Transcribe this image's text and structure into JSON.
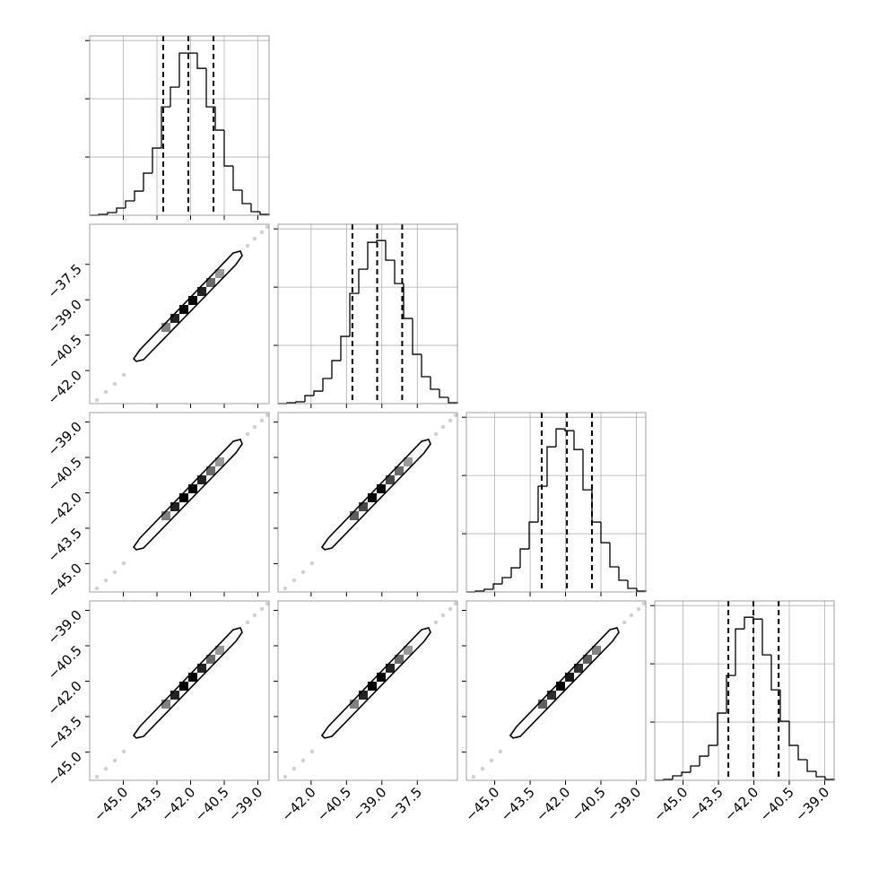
{
  "chart_data": {
    "type": "corner",
    "color": "#000000",
    "grid": true,
    "hist_ylim": [
      0,
      3080
    ],
    "hist_yticks": [
      1000,
      2000,
      3000
    ],
    "params": [
      {
        "lim": [
          -46.5,
          -38.5
        ],
        "ticks": [
          {
            "value": -45,
            "label": "−45.0"
          },
          {
            "value": -43.5,
            "label": "−43.5"
          },
          {
            "value": -42,
            "label": "−42.0"
          },
          {
            "value": -40.5,
            "label": "−40.5"
          },
          {
            "value": -39,
            "label": "−39.0"
          }
        ],
        "bins": [
          -46.5,
          -46.1,
          -45.7,
          -45.3,
          -44.9,
          -44.5,
          -44.1,
          -43.7,
          -43.3,
          -42.9,
          -42.5,
          -42.1,
          -41.7,
          -41.3,
          -40.9,
          -40.5,
          -40.1,
          -39.7,
          -39.3,
          -38.9,
          -38.5
        ],
        "counts": [
          0,
          15,
          46,
          123,
          246,
          415,
          723,
          1154,
          1862,
          2200,
          2785,
          2785,
          2523,
          1862,
          1462,
          846,
          431,
          200,
          62,
          15
        ],
        "quantiles": [
          -43.22,
          -42.1,
          -40.98
        ]
      },
      {
        "lim": [
          -43.4,
          -35.8
        ],
        "ticks": [
          {
            "value": -42,
            "label": "−42.0"
          },
          {
            "value": -40.5,
            "label": "−40.5"
          },
          {
            "value": -39,
            "label": "−39.0"
          },
          {
            "value": -37.5,
            "label": "−37.5"
          }
        ],
        "bins": [
          -43.4,
          -43.02,
          -42.64,
          -42.26,
          -41.88,
          -41.5,
          -41.12,
          -40.74,
          -40.36,
          -39.98,
          -39.6,
          -39.22,
          -38.84,
          -38.46,
          -38.08,
          -37.7,
          -37.32,
          -36.94,
          -36.56,
          -36.18,
          -35.8
        ],
        "counts": [
          0,
          15,
          31,
          138,
          215,
          431,
          738,
          1154,
          1892,
          2308,
          2769,
          2800,
          2462,
          2062,
          1462,
          846,
          462,
          246,
          108,
          15
        ],
        "quantiles": [
          -40.25,
          -39.2,
          -38.14
        ]
      },
      {
        "lim": [
          -46.2,
          -38.6
        ],
        "ticks": [
          {
            "value": -45,
            "label": "−45.0"
          },
          {
            "value": -43.5,
            "label": "−43.5"
          },
          {
            "value": -42,
            "label": "−42.0"
          },
          {
            "value": -40.5,
            "label": "−40.5"
          },
          {
            "value": -39,
            "label": "−39.0"
          }
        ],
        "bins": [
          -46.2,
          -45.82,
          -45.44,
          -45.06,
          -44.68,
          -44.3,
          -43.92,
          -43.54,
          -43.16,
          -42.78,
          -42.4,
          -42.02,
          -41.64,
          -41.26,
          -40.88,
          -40.5,
          -40.12,
          -39.74,
          -39.36,
          -38.98,
          -38.6
        ],
        "counts": [
          0,
          15,
          46,
          138,
          246,
          415,
          738,
          1200,
          1815,
          2492,
          2800,
          2769,
          2446,
          1754,
          1200,
          846,
          431,
          200,
          62,
          15
        ],
        "quantiles": [
          -43.01,
          -41.94,
          -40.88
        ]
      },
      {
        "lim": [
          -46.2,
          -38.6
        ],
        "ticks": [
          {
            "value": -45,
            "label": "−45.0"
          },
          {
            "value": -43.5,
            "label": "−43.5"
          },
          {
            "value": -42,
            "label": "−42.0"
          },
          {
            "value": -40.5,
            "label": "−40.5"
          },
          {
            "value": -39,
            "label": "−39.0"
          }
        ],
        "bins": [
          -46.2,
          -45.82,
          -45.44,
          -45.06,
          -44.68,
          -44.3,
          -43.92,
          -43.54,
          -43.16,
          -42.78,
          -42.4,
          -42.02,
          -41.64,
          -41.26,
          -40.88,
          -40.5,
          -40.12,
          -39.74,
          -39.36,
          -38.98,
          -38.6
        ],
        "counts": [
          0,
          15,
          77,
          138,
          246,
          415,
          600,
          1154,
          1800,
          2600,
          2800,
          2769,
          2154,
          1554,
          1015,
          600,
          354,
          154,
          62,
          15
        ],
        "quantiles": [
          -43.08,
          -42.02,
          -40.95
        ]
      }
    ],
    "panels": [
      {
        "x_param": 0,
        "y_param": 1,
        "contour": {
          "x": [
            -44.54,
            -44.26,
            -40.1,
            -39.78,
            -39.7,
            -39.98,
            -44.1,
            -44.42
          ],
          "y": [
            -41.5,
            -41.12,
            -37.02,
            -36.94,
            -37.13,
            -37.51,
            -41.54,
            -41.61
          ]
        },
        "density": {
          "x": [
            -42.3,
            -41.9,
            -42.7,
            -41.5,
            -43.1,
            -41.1,
            -40.7
          ],
          "y": [
            -39.41,
            -39.03,
            -39.79,
            -38.65,
            -40.17,
            -38.27,
            -37.89
          ],
          "values": [
            1,
            1,
            0.85,
            0.85,
            0.45,
            0.55,
            0.35
          ]
        },
        "points": {
          "x": [
            -46.18,
            -45.78,
            -45.38,
            -44.98,
            -39.46,
            -39.14,
            -38.82,
            -38.58
          ],
          "y": [
            -43.25,
            -42.91,
            -42.56,
            -42.18,
            -36.71,
            -36.41,
            -36.14,
            -35.91
          ]
        }
      },
      {
        "x_param": 0,
        "y_param": 2,
        "contour": {
          "x": [
            -44.54,
            -44.26,
            -40.1,
            -39.78,
            -39.7,
            -39.98,
            -44.1,
            -44.42
          ],
          "y": [
            -44.3,
            -43.92,
            -39.82,
            -39.74,
            -39.93,
            -40.31,
            -44.34,
            -44.41
          ]
        },
        "density": {
          "x": [
            -42.3,
            -41.9,
            -42.7,
            -41.5,
            -43.1,
            -41.1,
            -40.7
          ],
          "y": [
            -42.21,
            -41.83,
            -42.59,
            -41.45,
            -42.97,
            -41.07,
            -40.69
          ],
          "values": [
            1,
            1,
            0.85,
            0.85,
            0.45,
            0.55,
            0.35
          ]
        },
        "points": {
          "x": [
            -46.18,
            -45.78,
            -45.38,
            -44.98,
            -39.46,
            -39.14,
            -38.82,
            -38.58
          ],
          "y": [
            -46.05,
            -45.71,
            -45.36,
            -44.98,
            -39.51,
            -39.21,
            -38.94,
            -38.71
          ]
        }
      },
      {
        "x_param": 0,
        "y_param": 3,
        "contour": {
          "x": [
            -44.54,
            -44.26,
            -40.1,
            -39.78,
            -39.7,
            -39.98,
            -44.1,
            -44.42
          ],
          "y": [
            -44.3,
            -43.92,
            -39.82,
            -39.74,
            -39.93,
            -40.31,
            -44.34,
            -44.41
          ]
        },
        "density": {
          "x": [
            -42.3,
            -41.9,
            -42.7,
            -41.5,
            -43.1,
            -41.1,
            -40.7
          ],
          "y": [
            -42.21,
            -41.83,
            -42.59,
            -41.45,
            -42.97,
            -41.07,
            -40.69
          ],
          "values": [
            1,
            1,
            0.85,
            0.85,
            0.45,
            0.55,
            0.35
          ]
        },
        "points": {
          "x": [
            -46.18,
            -45.78,
            -45.38,
            -44.98,
            -39.46,
            -39.14,
            -38.82,
            -38.58
          ],
          "y": [
            -46.05,
            -45.71,
            -45.36,
            -44.98,
            -39.51,
            -39.21,
            -38.94,
            -38.71
          ]
        }
      },
      {
        "x_param": 1,
        "y_param": 2,
        "contour": {
          "x": [
            -41.54,
            -41.27,
            -37.32,
            -37.02,
            -36.94,
            -37.21,
            -41.12,
            -41.42
          ],
          "y": [
            -44.3,
            -43.92,
            -39.82,
            -39.74,
            -39.93,
            -40.31,
            -44.34,
            -44.41
          ]
        },
        "density": {
          "x": [
            -39.41,
            -39.03,
            -39.79,
            -38.65,
            -40.17,
            -38.27,
            -37.89
          ],
          "y": [
            -42.21,
            -41.83,
            -42.59,
            -41.45,
            -42.97,
            -41.07,
            -40.69
          ],
          "values": [
            1,
            1,
            0.7,
            0.7,
            0.6,
            0.55,
            0.35
          ]
        },
        "points": {
          "x": [
            -43.1,
            -42.72,
            -42.34,
            -41.96,
            -36.71,
            -36.41,
            -36.1,
            -35.88
          ],
          "y": [
            -46.05,
            -45.71,
            -45.36,
            -44.98,
            -39.51,
            -39.21,
            -38.94,
            -38.71
          ]
        }
      },
      {
        "x_param": 1,
        "y_param": 3,
        "contour": {
          "x": [
            -41.54,
            -41.27,
            -37.32,
            -37.02,
            -36.94,
            -37.21,
            -41.12,
            -41.42
          ],
          "y": [
            -44.3,
            -43.92,
            -39.82,
            -39.74,
            -39.93,
            -40.31,
            -44.34,
            -44.41
          ]
        },
        "density": {
          "x": [
            -39.41,
            -39.03,
            -39.79,
            -38.65,
            -40.17,
            -38.27,
            -37.89
          ],
          "y": [
            -42.21,
            -41.83,
            -42.59,
            -41.45,
            -42.97,
            -41.07,
            -40.69
          ],
          "values": [
            1,
            1,
            0.85,
            0.85,
            0.45,
            0.55,
            0.35
          ]
        },
        "points": {
          "x": [
            -43.1,
            -42.72,
            -42.34,
            -41.96,
            -36.71,
            -36.41,
            -36.1,
            -35.88
          ],
          "y": [
            -46.05,
            -45.71,
            -45.36,
            -44.98,
            -39.51,
            -39.21,
            -38.94,
            -38.71
          ]
        }
      },
      {
        "x_param": 2,
        "y_param": 3,
        "contour": {
          "x": [
            -44.34,
            -44.07,
            -40.12,
            -39.82,
            -39.74,
            -40.01,
            -43.92,
            -44.22
          ],
          "y": [
            -44.3,
            -43.92,
            -39.82,
            -39.74,
            -39.93,
            -40.31,
            -44.34,
            -44.41
          ]
        },
        "density": {
          "x": [
            -42.21,
            -41.83,
            -42.59,
            -41.45,
            -42.97,
            -41.07,
            -40.69
          ],
          "y": [
            -42.21,
            -41.83,
            -42.59,
            -41.45,
            -42.97,
            -41.07,
            -40.69
          ],
          "values": [
            1,
            0.9,
            0.8,
            0.8,
            0.6,
            0.6,
            0.45
          ]
        },
        "points": {
          "x": [
            -45.9,
            -45.52,
            -45.14,
            -44.76,
            -39.51,
            -39.21,
            -38.9,
            -38.68
          ],
          "y": [
            -46.05,
            -45.71,
            -45.36,
            -44.98,
            -39.51,
            -39.21,
            -38.94,
            -38.71
          ]
        }
      }
    ]
  }
}
